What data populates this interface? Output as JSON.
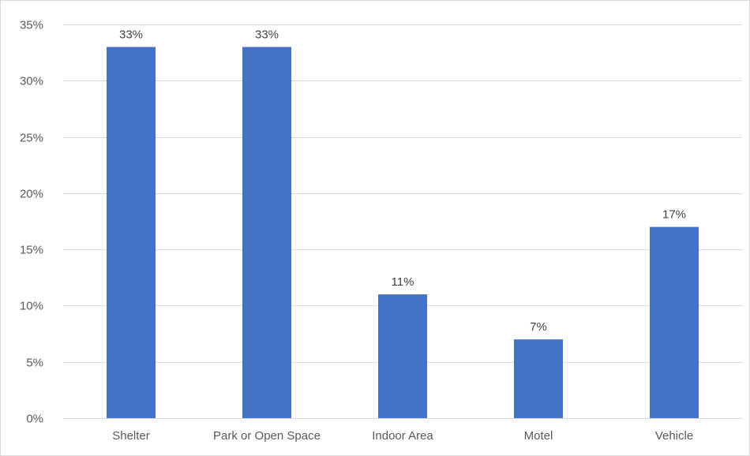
{
  "chart_data": {
    "type": "bar",
    "title": "",
    "xlabel": "",
    "ylabel": "",
    "categories": [
      "Shelter",
      "Park or Open Space",
      "Indoor Area",
      "Motel",
      "Vehicle"
    ],
    "values": [
      33,
      33,
      11,
      7,
      17
    ],
    "data_labels": [
      "33%",
      "33%",
      "11%",
      "7%",
      "17%"
    ],
    "ylim": [
      0,
      35
    ],
    "y_ticks": [
      0,
      5,
      10,
      15,
      20,
      25,
      30,
      35
    ],
    "y_tick_labels": [
      "0%",
      "5%",
      "10%",
      "15%",
      "20%",
      "25%",
      "30%",
      "35%"
    ],
    "grid": true,
    "legend": "none",
    "colors": {
      "bar": "#4472c4",
      "grid": "#d9d9d9",
      "tick_text": "#595959",
      "label_text": "#404040"
    }
  }
}
